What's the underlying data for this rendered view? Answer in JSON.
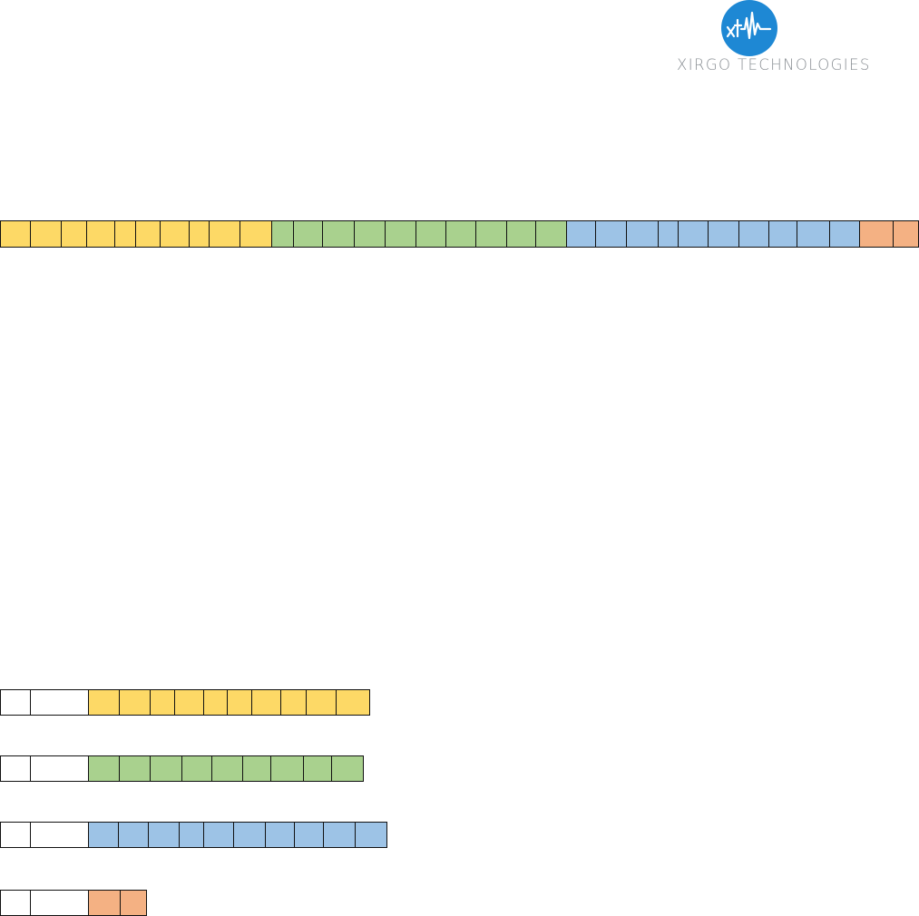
{
  "logo": {
    "name": "XIRGO TECHNOLOGIES",
    "monogram": "xt",
    "brand_color": "#1e88d4",
    "text_color": "#8a8f94"
  },
  "colors": {
    "yellow": "#fdd966",
    "green": "#a9d18e",
    "blue": "#9dc3e6",
    "orange": "#f4b183",
    "border": "#111111"
  }
}
